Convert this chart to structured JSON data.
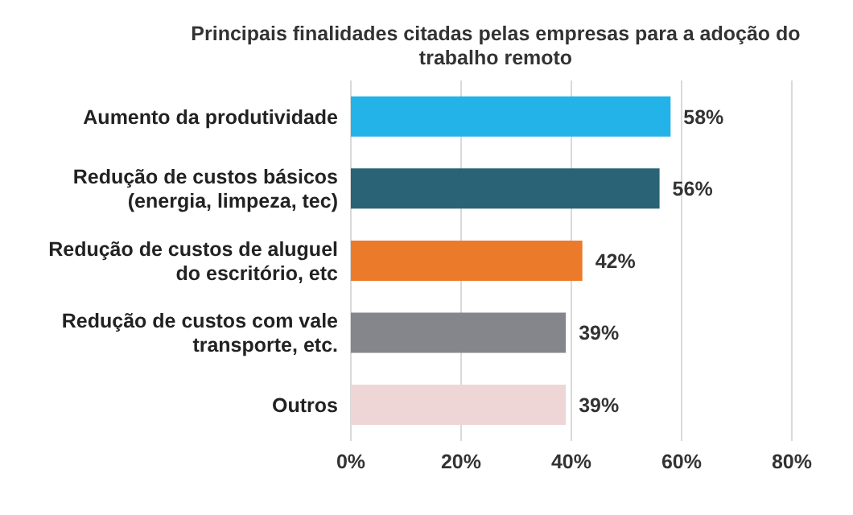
{
  "chart_data": {
    "type": "bar",
    "orientation": "horizontal",
    "title": "Principais finalidades citadas pelas empresas para a adoção do trabalho remoto",
    "categories": [
      "Aumento da produtividade",
      "Redução de custos básicos (energia, limpeza, tec)",
      "Redução de custos de aluguel do escritório, etc",
      "Redução de custos com vale transporte, etc.",
      "Outros"
    ],
    "values": [
      58,
      56,
      42,
      39,
      39
    ],
    "colors": [
      "#23b3e8",
      "#2a6376",
      "#ec7a2b",
      "#85868b",
      "#eed6d6"
    ],
    "value_labels": [
      "58%",
      "56%",
      "42%",
      "39%",
      "39%"
    ],
    "xlim": [
      0,
      80
    ],
    "xticks": [
      {
        "value": 0,
        "label": "0%"
      },
      {
        "value": 20,
        "label": "20%"
      },
      {
        "value": 40,
        "label": "40%"
      },
      {
        "value": 60,
        "label": "60%"
      },
      {
        "value": 80,
        "label": "80%"
      }
    ],
    "grid": "x"
  }
}
